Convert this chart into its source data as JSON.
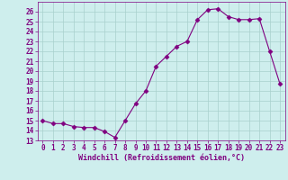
{
  "x": [
    0,
    1,
    2,
    3,
    4,
    5,
    6,
    7,
    8,
    9,
    10,
    11,
    12,
    13,
    14,
    15,
    16,
    17,
    18,
    19,
    20,
    21,
    22,
    23
  ],
  "y": [
    15.0,
    14.7,
    14.7,
    14.4,
    14.3,
    14.3,
    13.9,
    13.3,
    15.0,
    16.7,
    18.0,
    20.5,
    21.5,
    22.5,
    23.0,
    25.2,
    26.2,
    26.3,
    25.5,
    25.2,
    25.2,
    25.3,
    22.0,
    18.7
  ],
  "line_color": "#800080",
  "marker": "D",
  "marker_size": 2.5,
  "bg_color": "#ceeeed",
  "grid_color": "#a8d0cc",
  "xlabel": "Windchill (Refroidissement éolien,°C)",
  "xlabel_color": "#800080",
  "tick_color": "#800080",
  "ylim": [
    13,
    27
  ],
  "xlim": [
    -0.5,
    23.5
  ],
  "yticks": [
    13,
    14,
    15,
    16,
    17,
    18,
    19,
    20,
    21,
    22,
    23,
    24,
    25,
    26
  ],
  "xticks": [
    0,
    1,
    2,
    3,
    4,
    5,
    6,
    7,
    8,
    9,
    10,
    11,
    12,
    13,
    14,
    15,
    16,
    17,
    18,
    19,
    20,
    21,
    22,
    23
  ]
}
